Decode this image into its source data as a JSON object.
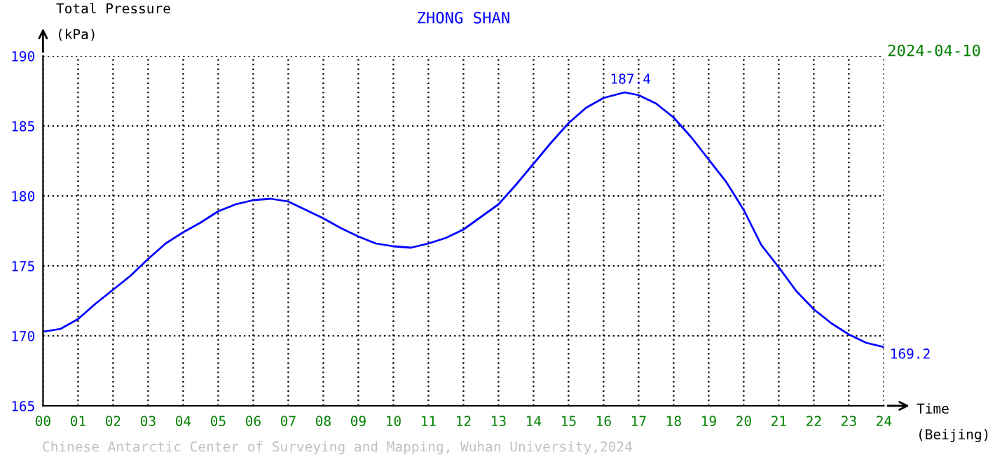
{
  "chart_data": {
    "type": "line",
    "title": "ZHONG SHAN",
    "ylabel": "Total Pressure\n(kPa)",
    "xlabel": "Time\n(Beijing)",
    "annotations": [
      "2024-04-10",
      "Chinese Antarctic Center of Surveying and Mapping, Wuhan University,2024"
    ],
    "x": [
      0,
      0.5,
      1,
      1.5,
      2,
      2.5,
      3,
      3.5,
      4,
      4.5,
      5,
      5.5,
      6,
      6.5,
      7,
      7.5,
      8,
      8.5,
      9,
      9.5,
      10,
      10.5,
      11,
      11.5,
      12,
      12.5,
      13,
      13.5,
      14,
      14.5,
      15,
      15.5,
      16,
      16.6,
      17,
      17.5,
      18,
      18.5,
      19,
      19.5,
      20,
      20.5,
      21,
      21.5,
      22,
      22.5,
      23,
      23.5,
      24
    ],
    "series": [
      {
        "color": "#0000ff",
        "values": [
          170.3,
          170.5,
          171.2,
          172.3,
          173.3,
          174.3,
          175.5,
          176.6,
          177.4,
          178.1,
          178.9,
          179.4,
          179.7,
          179.8,
          179.6,
          179.0,
          178.4,
          177.7,
          177.1,
          176.6,
          176.4,
          176.3,
          176.6,
          177.0,
          177.6,
          178.5,
          179.4,
          180.8,
          182.3,
          183.8,
          185.2,
          186.3,
          187.0,
          187.4,
          187.2,
          186.6,
          185.6,
          184.2,
          182.6,
          181.0,
          179.0,
          176.5,
          174.9,
          173.2,
          171.9,
          170.9,
          170.1,
          169.5,
          169.2
        ],
        "value_labels": [
          null,
          null,
          null,
          null,
          null,
          null,
          null,
          null,
          null,
          null,
          null,
          null,
          null,
          null,
          null,
          null,
          null,
          null,
          null,
          null,
          null,
          null,
          null,
          null,
          null,
          null,
          null,
          null,
          null,
          null,
          null,
          null,
          null,
          "187.4",
          null,
          null,
          null,
          null,
          null,
          null,
          null,
          null,
          null,
          null,
          null,
          null,
          null,
          null,
          "169.2"
        ]
      }
    ],
    "xlim": [
      0,
      24
    ],
    "ylim": [
      165,
      190
    ],
    "xticks": [
      {
        "value": 0,
        "label": "00"
      },
      {
        "value": 1,
        "label": "01"
      },
      {
        "value": 2,
        "label": "02"
      },
      {
        "value": 3,
        "label": "03"
      },
      {
        "value": 4,
        "label": "04"
      },
      {
        "value": 5,
        "label": "05"
      },
      {
        "value": 6,
        "label": "06"
      },
      {
        "value": 7,
        "label": "07"
      },
      {
        "value": 8,
        "label": "08"
      },
      {
        "value": 9,
        "label": "09"
      },
      10,
      11,
      12,
      13,
      14,
      15,
      16,
      17,
      18,
      19,
      20,
      21,
      22,
      23,
      24
    ],
    "yticks": [
      165,
      170,
      175,
      180,
      185,
      190
    ],
    "grid": true,
    "line_style": "solid",
    "marker": "none",
    "legend": false
  }
}
